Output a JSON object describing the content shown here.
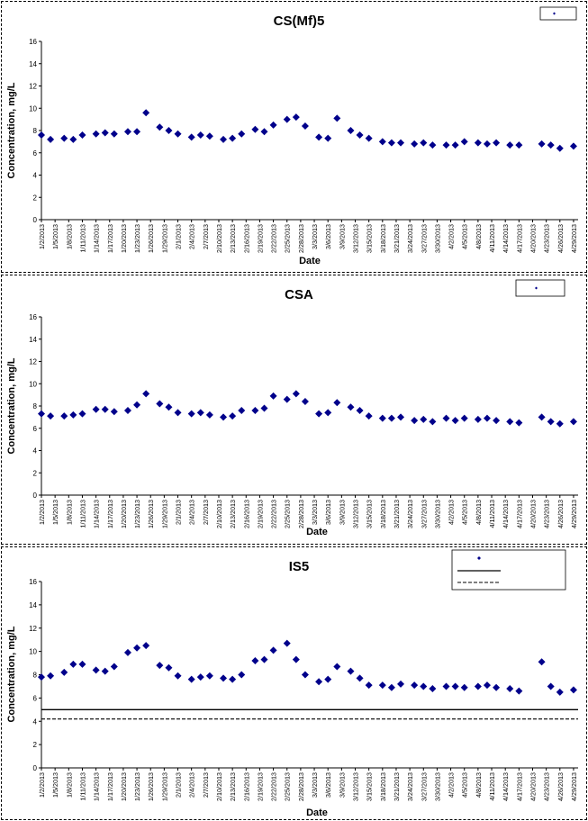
{
  "chart_data": [
    {
      "type": "scatter",
      "title": "CS(Mf)5",
      "xlabel": "Date",
      "ylabel": "Concentration, mg/L",
      "ylim": [
        0,
        16
      ],
      "yticks": [
        0,
        2,
        4,
        6,
        8,
        10,
        12,
        14,
        16
      ],
      "xlim": [
        "1/2/2013",
        "4/30/2013"
      ],
      "xtick_labels": [
        "1/2/2013",
        "1/5/2013",
        "1/8/2013",
        "1/11/2013",
        "1/14/2013",
        "1/17/2013",
        "1/20/2013",
        "1/23/2013",
        "1/26/2013",
        "1/29/2013",
        "2/1/2013",
        "2/4/2013",
        "2/7/2013",
        "2/10/2013",
        "2/13/2013",
        "2/16/2013",
        "2/19/2013",
        "2/22/2013",
        "2/25/2013",
        "2/28/2013",
        "3/3/2013",
        "3/6/2013",
        "3/9/2013",
        "3/12/2013",
        "3/15/2013",
        "3/18/2013",
        "3/21/2013",
        "3/24/2013",
        "3/27/2013",
        "3/30/2013",
        "4/2/2013",
        "4/5/2013",
        "4/8/2013",
        "4/11/2013",
        "4/14/2013",
        "4/17/2013",
        "4/20/2013",
        "4/23/2013",
        "4/26/2013",
        "4/29/2013"
      ],
      "legend_position": "top-right",
      "colors": {
        "marker": "#00008b"
      },
      "series": [
        {
          "name": "",
          "x": [
            "1/2/2013",
            "1/4/2013",
            "1/7/2013",
            "1/9/2013",
            "1/11/2013",
            "1/14/2013",
            "1/16/2013",
            "1/18/2013",
            "1/21/2013",
            "1/23/2013",
            "1/25/2013",
            "1/28/2013",
            "1/30/2013",
            "2/1/2013",
            "2/4/2013",
            "2/6/2013",
            "2/8/2013",
            "2/11/2013",
            "2/13/2013",
            "2/15/2013",
            "2/18/2013",
            "2/20/2013",
            "2/22/2013",
            "2/25/2013",
            "2/27/2013",
            "3/1/2013",
            "3/4/2013",
            "3/6/2013",
            "3/8/2013",
            "3/11/2013",
            "3/13/2013",
            "3/15/2013",
            "3/18/2013",
            "3/20/2013",
            "3/22/2013",
            "3/25/2013",
            "3/27/2013",
            "3/29/2013",
            "4/1/2013",
            "4/3/2013",
            "4/5/2013",
            "4/8/2013",
            "4/10/2013",
            "4/12/2013",
            "4/15/2013",
            "4/17/2013",
            "4/22/2013",
            "4/24/2013",
            "4/26/2013",
            "4/29/2013"
          ],
          "y": [
            7.6,
            7.2,
            7.3,
            7.2,
            7.6,
            7.7,
            7.8,
            7.7,
            7.9,
            7.9,
            9.6,
            8.3,
            8.0,
            7.7,
            7.4,
            7.6,
            7.5,
            7.2,
            7.3,
            7.7,
            8.1,
            7.9,
            8.5,
            9.0,
            9.2,
            8.4,
            7.4,
            7.3,
            9.1,
            8.0,
            7.6,
            7.3,
            7.0,
            6.9,
            6.9,
            6.8,
            6.9,
            6.7,
            6.7,
            6.7,
            7.0,
            6.9,
            6.8,
            6.9,
            6.7,
            6.7,
            6.8,
            6.7,
            6.4,
            6.6
          ]
        }
      ]
    },
    {
      "type": "scatter",
      "title": "CSA",
      "xlabel": "Date",
      "ylabel": "Concentration, mg/L",
      "ylim": [
        0,
        16
      ],
      "yticks": [
        0,
        2,
        4,
        6,
        8,
        10,
        12,
        14,
        16
      ],
      "xlim": [
        "1/2/2013",
        "4/30/2013"
      ],
      "xtick_labels": [
        "1/2/2013",
        "1/5/2013",
        "1/8/2013",
        "1/11/2013",
        "1/14/2013",
        "1/17/2013",
        "1/20/2013",
        "1/23/2013",
        "1/26/2013",
        "1/29/2013",
        "2/1/2013",
        "2/4/2013",
        "2/7/2013",
        "2/10/2013",
        "2/13/2013",
        "2/16/2013",
        "2/19/2013",
        "2/22/2013",
        "2/25/2013",
        "2/28/2013",
        "3/3/2013",
        "3/6/2013",
        "3/9/2013",
        "3/12/2013",
        "3/15/2013",
        "3/18/2013",
        "3/21/2013",
        "3/24/2013",
        "3/27/2013",
        "3/30/2013",
        "4/2/2013",
        "4/5/2013",
        "4/8/2013",
        "4/11/2013",
        "4/14/2013",
        "4/17/2013",
        "4/20/2013",
        "4/23/2013",
        "4/26/2013",
        "4/29/2013"
      ],
      "legend_position": "top-right",
      "colors": {
        "marker": "#00008b"
      },
      "series": [
        {
          "name": "",
          "x": [
            "1/2/2013",
            "1/4/2013",
            "1/7/2013",
            "1/9/2013",
            "1/11/2013",
            "1/14/2013",
            "1/16/2013",
            "1/18/2013",
            "1/21/2013",
            "1/23/2013",
            "1/25/2013",
            "1/28/2013",
            "1/30/2013",
            "2/1/2013",
            "2/4/2013",
            "2/6/2013",
            "2/8/2013",
            "2/11/2013",
            "2/13/2013",
            "2/15/2013",
            "2/18/2013",
            "2/20/2013",
            "2/22/2013",
            "2/25/2013",
            "2/27/2013",
            "3/1/2013",
            "3/4/2013",
            "3/6/2013",
            "3/8/2013",
            "3/11/2013",
            "3/13/2013",
            "3/15/2013",
            "3/18/2013",
            "3/20/2013",
            "3/22/2013",
            "3/25/2013",
            "3/27/2013",
            "3/29/2013",
            "4/1/2013",
            "4/3/2013",
            "4/5/2013",
            "4/8/2013",
            "4/10/2013",
            "4/12/2013",
            "4/15/2013",
            "4/17/2013",
            "4/22/2013",
            "4/24/2013",
            "4/26/2013",
            "4/29/2013"
          ],
          "y": [
            7.3,
            7.1,
            7.1,
            7.2,
            7.3,
            7.7,
            7.7,
            7.5,
            7.6,
            8.1,
            9.1,
            8.2,
            7.9,
            7.4,
            7.3,
            7.4,
            7.2,
            7.0,
            7.1,
            7.6,
            7.6,
            7.8,
            8.9,
            8.6,
            9.1,
            8.4,
            7.3,
            7.4,
            8.3,
            7.9,
            7.6,
            7.1,
            6.9,
            6.9,
            7.0,
            6.7,
            6.8,
            6.6,
            6.9,
            6.7,
            6.9,
            6.8,
            6.9,
            6.7,
            6.6,
            6.5,
            7.0,
            6.6,
            6.4,
            6.6
          ]
        }
      ]
    },
    {
      "type": "scatter",
      "title": "IS5",
      "xlabel": "Date",
      "ylabel": "Concentration, mg/L",
      "ylim": [
        0,
        16
      ],
      "yticks": [
        0,
        2,
        4,
        6,
        8,
        10,
        12,
        14,
        16
      ],
      "xlim": [
        "1/2/2013",
        "4/30/2013"
      ],
      "xtick_labels": [
        "1/2/2013",
        "1/5/2013",
        "1/8/2013",
        "1/11/2013",
        "1/14/2013",
        "1/17/2013",
        "1/20/2013",
        "1/23/2013",
        "1/26/2013",
        "1/29/2013",
        "2/1/2013",
        "2/4/2013",
        "2/7/2013",
        "2/10/2013",
        "2/13/2013",
        "2/16/2013",
        "2/19/2013",
        "2/22/2013",
        "2/25/2013",
        "2/28/2013",
        "3/3/2013",
        "3/6/2013",
        "3/9/2013",
        "3/12/2013",
        "3/15/2013",
        "3/18/2013",
        "3/21/2013",
        "3/24/2013",
        "3/27/2013",
        "3/30/2013",
        "4/2/2013",
        "4/5/2013",
        "4/8/2013",
        "4/11/2013",
        "4/14/2013",
        "4/17/2013",
        "4/20/2013",
        "4/23/2013",
        "4/26/2013",
        "4/29/2013"
      ],
      "legend_position": "top-right",
      "colors": {
        "marker": "#00008b"
      },
      "hlines": [
        {
          "y": 5.0,
          "style": "solid"
        },
        {
          "y": 4.2,
          "style": "dashed"
        }
      ],
      "series": [
        {
          "name": "",
          "x": [
            "1/2/2013",
            "1/4/2013",
            "1/7/2013",
            "1/9/2013",
            "1/11/2013",
            "1/14/2013",
            "1/16/2013",
            "1/18/2013",
            "1/21/2013",
            "1/23/2013",
            "1/25/2013",
            "1/28/2013",
            "1/30/2013",
            "2/1/2013",
            "2/4/2013",
            "2/6/2013",
            "2/8/2013",
            "2/11/2013",
            "2/13/2013",
            "2/15/2013",
            "2/18/2013",
            "2/20/2013",
            "2/22/2013",
            "2/25/2013",
            "2/27/2013",
            "3/1/2013",
            "3/4/2013",
            "3/6/2013",
            "3/8/2013",
            "3/11/2013",
            "3/13/2013",
            "3/15/2013",
            "3/18/2013",
            "3/20/2013",
            "3/22/2013",
            "3/25/2013",
            "3/27/2013",
            "3/29/2013",
            "4/1/2013",
            "4/3/2013",
            "4/5/2013",
            "4/8/2013",
            "4/10/2013",
            "4/12/2013",
            "4/15/2013",
            "4/17/2013",
            "4/22/2013",
            "4/24/2013",
            "4/26/2013",
            "4/29/2013"
          ],
          "y": [
            7.8,
            7.9,
            8.2,
            8.9,
            8.9,
            8.4,
            8.3,
            8.7,
            9.9,
            10.3,
            10.5,
            8.8,
            8.6,
            7.9,
            7.6,
            7.8,
            7.9,
            7.7,
            7.6,
            8.0,
            9.2,
            9.3,
            10.1,
            10.7,
            9.3,
            8.0,
            7.4,
            7.6,
            8.7,
            8.3,
            7.7,
            7.1,
            7.1,
            6.9,
            7.2,
            7.1,
            7.0,
            6.8,
            7.0,
            7.0,
            6.9,
            7.0,
            7.1,
            6.9,
            6.8,
            6.6,
            9.1,
            7.0,
            6.5,
            6.7
          ]
        }
      ]
    }
  ]
}
